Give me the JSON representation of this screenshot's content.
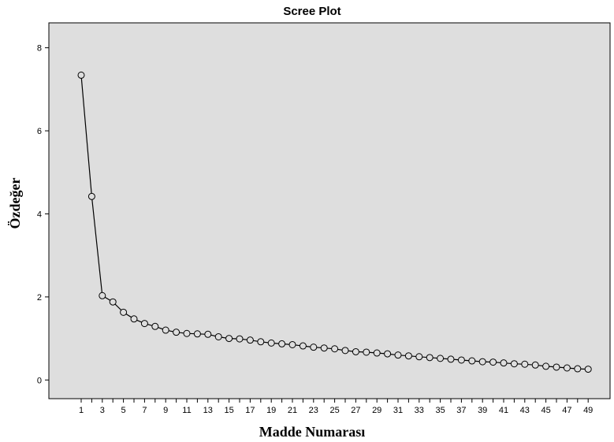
{
  "chart_data": {
    "type": "line",
    "title": "Scree Plot",
    "xlabel": "Madde Numarası",
    "ylabel": "Özdeğer",
    "x": [
      1,
      2,
      3,
      4,
      5,
      6,
      7,
      8,
      9,
      10,
      11,
      12,
      13,
      14,
      15,
      16,
      17,
      18,
      19,
      20,
      21,
      22,
      23,
      24,
      25,
      26,
      27,
      28,
      29,
      30,
      31,
      32,
      33,
      34,
      35,
      36,
      37,
      38,
      39,
      40,
      41,
      42,
      43,
      44,
      45,
      46,
      47,
      48,
      49
    ],
    "x_tick_labels": [
      "1",
      "3",
      "5",
      "7",
      "9",
      "11",
      "13",
      "15",
      "17",
      "19",
      "21",
      "23",
      "25",
      "27",
      "29",
      "31",
      "33",
      "35",
      "37",
      "39",
      "41",
      "43",
      "45",
      "47",
      "49"
    ],
    "y_tick_labels": [
      "0",
      "2",
      "4",
      "6",
      "8"
    ],
    "ylim": [
      -0.45,
      8.6
    ],
    "series": [
      {
        "values": [
          7.34,
          4.42,
          2.03,
          1.88,
          1.63,
          1.47,
          1.36,
          1.29,
          1.2,
          1.15,
          1.12,
          1.11,
          1.1,
          1.04,
          1.0,
          0.99,
          0.96,
          0.92,
          0.89,
          0.87,
          0.85,
          0.82,
          0.79,
          0.77,
          0.75,
          0.71,
          0.68,
          0.67,
          0.65,
          0.63,
          0.6,
          0.58,
          0.56,
          0.54,
          0.52,
          0.5,
          0.48,
          0.46,
          0.44,
          0.43,
          0.41,
          0.39,
          0.38,
          0.36,
          0.33,
          0.31,
          0.29,
          0.27,
          0.26
        ]
      }
    ],
    "colors": {
      "plot_background": "#dedede",
      "line": "#000000",
      "marker_stroke": "#000000"
    },
    "marker": "open-circle",
    "grid": false
  }
}
